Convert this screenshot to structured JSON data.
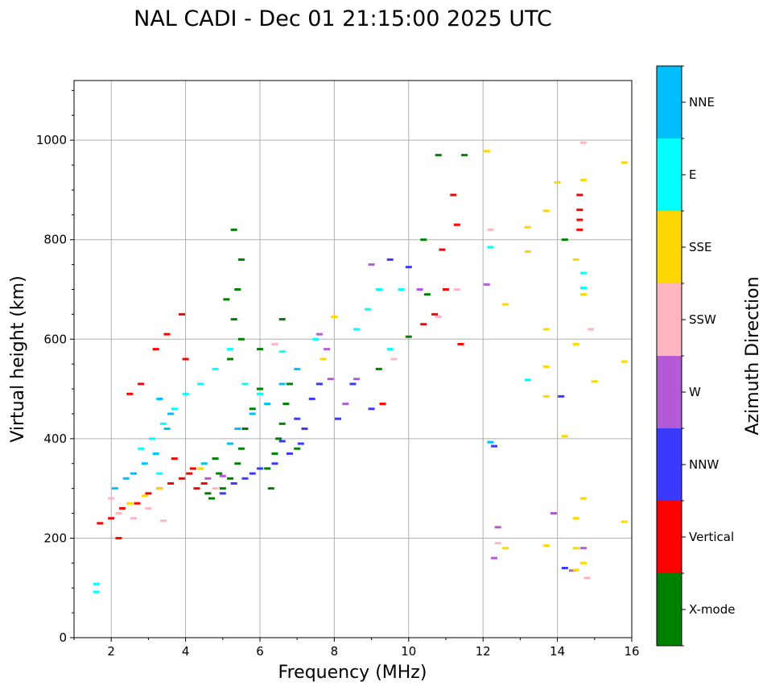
{
  "chart_data": {
    "type": "scatter",
    "title": "NAL CADI - Dec 01 21:15:00 2025 UTC",
    "xlabel": "Frequency (MHz)",
    "ylabel": "Virtual height (km)",
    "colorbar_label": "Azimuth Direction",
    "xlim": [
      1,
      16
    ],
    "ylim": [
      0,
      1120
    ],
    "xticks": [
      2,
      4,
      6,
      8,
      10,
      12,
      14,
      16
    ],
    "yticks": [
      0,
      200,
      400,
      600,
      800,
      1000
    ],
    "xtick_labels": [
      "2",
      "4",
      "6",
      "8",
      "10",
      "12",
      "14",
      "16"
    ],
    "ytick_labels": [
      "0",
      "200",
      "400",
      "600",
      "800",
      "1000"
    ],
    "grid": true,
    "categories": [
      {
        "name": "X-mode",
        "color": "#008000"
      },
      {
        "name": "Vertical",
        "color": "#ff0000"
      },
      {
        "name": "NNW",
        "color": "#3a3aff"
      },
      {
        "name": "W",
        "color": "#b45ad6"
      },
      {
        "name": "SSW",
        "color": "#ffb6c1"
      },
      {
        "name": "SSE",
        "color": "#ffd700"
      },
      {
        "name": "E",
        "color": "#00ffff"
      },
      {
        "name": "NNE",
        "color": "#00bfff"
      }
    ],
    "series": [
      {
        "name": "X-mode",
        "points": [
          [
            4.7,
            280
          ],
          [
            5.0,
            300
          ],
          [
            5.2,
            320
          ],
          [
            5.4,
            350
          ],
          [
            5.5,
            380
          ],
          [
            5.6,
            420
          ],
          [
            5.8,
            460
          ],
          [
            6.0,
            500
          ],
          [
            6.2,
            340
          ],
          [
            6.4,
            370
          ],
          [
            6.5,
            400
          ],
          [
            6.6,
            430
          ],
          [
            6.7,
            470
          ],
          [
            6.8,
            510
          ],
          [
            7.0,
            380
          ],
          [
            5.3,
            640
          ],
          [
            5.4,
            700
          ],
          [
            5.5,
            760
          ],
          [
            5.3,
            820
          ],
          [
            5.2,
            560
          ],
          [
            5.5,
            600
          ],
          [
            6.0,
            580
          ],
          [
            6.6,
            640
          ],
          [
            4.6,
            290
          ],
          [
            4.9,
            330
          ],
          [
            10.8,
            970
          ],
          [
            11.5,
            970
          ],
          [
            10.4,
            800
          ],
          [
            10.5,
            690
          ],
          [
            14.2,
            800
          ],
          [
            9.2,
            540
          ],
          [
            10.0,
            605
          ],
          [
            5.1,
            680
          ],
          [
            4.8,
            360
          ],
          [
            6.3,
            300
          ]
        ]
      },
      {
        "name": "Vertical",
        "points": [
          [
            1.7,
            230
          ],
          [
            2.0,
            240
          ],
          [
            2.3,
            260
          ],
          [
            2.7,
            270
          ],
          [
            3.0,
            290
          ],
          [
            3.3,
            300
          ],
          [
            3.6,
            310
          ],
          [
            3.9,
            320
          ],
          [
            4.1,
            330
          ],
          [
            4.3,
            300
          ],
          [
            3.2,
            580
          ],
          [
            3.5,
            610
          ],
          [
            3.9,
            650
          ],
          [
            2.5,
            490
          ],
          [
            2.8,
            510
          ],
          [
            4.0,
            560
          ],
          [
            3.7,
            360
          ],
          [
            4.2,
            340
          ],
          [
            2.2,
            200
          ],
          [
            10.9,
            780
          ],
          [
            11.3,
            830
          ],
          [
            11.0,
            700
          ],
          [
            10.7,
            650
          ],
          [
            11.4,
            590
          ],
          [
            14.6,
            820
          ],
          [
            14.6,
            840
          ],
          [
            14.6,
            860
          ],
          [
            14.6,
            890
          ],
          [
            9.3,
            470
          ],
          [
            10.4,
            630
          ],
          [
            11.2,
            890
          ],
          [
            4.5,
            310
          ]
        ]
      },
      {
        "name": "NNW",
        "points": [
          [
            5.0,
            290
          ],
          [
            5.3,
            310
          ],
          [
            5.6,
            320
          ],
          [
            6.0,
            340
          ],
          [
            6.4,
            350
          ],
          [
            6.8,
            370
          ],
          [
            7.1,
            390
          ],
          [
            7.2,
            420
          ],
          [
            7.4,
            480
          ],
          [
            7.6,
            510
          ],
          [
            8.1,
            440
          ],
          [
            8.5,
            510
          ],
          [
            9.0,
            460
          ],
          [
            9.5,
            760
          ],
          [
            10.0,
            745
          ],
          [
            12.3,
            385
          ],
          [
            14.1,
            485
          ],
          [
            14.2,
            140
          ],
          [
            6.6,
            395
          ],
          [
            7.0,
            440
          ],
          [
            5.8,
            330
          ]
        ]
      },
      {
        "name": "W",
        "points": [
          [
            4.6,
            320
          ],
          [
            5.0,
            325
          ],
          [
            7.6,
            610
          ],
          [
            7.9,
            520
          ],
          [
            8.3,
            470
          ],
          [
            8.6,
            520
          ],
          [
            9.0,
            750
          ],
          [
            10.3,
            700
          ],
          [
            12.1,
            710
          ],
          [
            12.4,
            222
          ],
          [
            12.3,
            160
          ],
          [
            14.4,
            135
          ],
          [
            13.9,
            250
          ],
          [
            14.7,
            180
          ],
          [
            7.8,
            580
          ]
        ]
      },
      {
        "name": "SSW",
        "points": [
          [
            2.2,
            250
          ],
          [
            2.6,
            240
          ],
          [
            3.0,
            260
          ],
          [
            3.4,
            235
          ],
          [
            2.0,
            280
          ],
          [
            6.4,
            590
          ],
          [
            9.6,
            560
          ],
          [
            10.8,
            645
          ],
          [
            11.3,
            700
          ],
          [
            12.2,
            820
          ],
          [
            12.4,
            190
          ],
          [
            14.9,
            620
          ],
          [
            14.8,
            120
          ],
          [
            14.7,
            995
          ],
          [
            4.8,
            300
          ]
        ]
      },
      {
        "name": "SSE",
        "points": [
          [
            2.5,
            270
          ],
          [
            2.9,
            285
          ],
          [
            3.3,
            300
          ],
          [
            4.4,
            340
          ],
          [
            8.0,
            645
          ],
          [
            7.7,
            560
          ],
          [
            12.1,
            978
          ],
          [
            12.6,
            670
          ],
          [
            13.2,
            825
          ],
          [
            13.2,
            776
          ],
          [
            13.7,
            858
          ],
          [
            13.7,
            620
          ],
          [
            13.7,
            545
          ],
          [
            13.7,
            485
          ],
          [
            13.7,
            185
          ],
          [
            14.0,
            915
          ],
          [
            14.5,
            760
          ],
          [
            14.5,
            590
          ],
          [
            14.5,
            240
          ],
          [
            14.5,
            180
          ],
          [
            14.5,
            136
          ],
          [
            14.7,
            280
          ],
          [
            14.7,
            150
          ],
          [
            14.7,
            920
          ],
          [
            14.7,
            690
          ],
          [
            15.0,
            515
          ],
          [
            15.8,
            955
          ],
          [
            15.8,
            555
          ],
          [
            15.8,
            233
          ],
          [
            12.6,
            180
          ],
          [
            14.2,
            405
          ]
        ]
      },
      {
        "name": "E",
        "points": [
          [
            2.8,
            380
          ],
          [
            3.1,
            400
          ],
          [
            3.4,
            430
          ],
          [
            3.7,
            460
          ],
          [
            4.0,
            490
          ],
          [
            4.4,
            510
          ],
          [
            4.8,
            540
          ],
          [
            5.2,
            580
          ],
          [
            5.6,
            510
          ],
          [
            6.0,
            490
          ],
          [
            8.6,
            620
          ],
          [
            8.9,
            660
          ],
          [
            9.2,
            700
          ],
          [
            9.5,
            580
          ],
          [
            9.8,
            700
          ],
          [
            12.2,
            785
          ],
          [
            14.7,
            733
          ],
          [
            14.7,
            703
          ],
          [
            13.2,
            518
          ],
          [
            7.5,
            600
          ],
          [
            1.6,
            108
          ],
          [
            1.6,
            92
          ],
          [
            3.3,
            330
          ],
          [
            6.6,
            575
          ]
        ]
      },
      {
        "name": "NNE",
        "points": [
          [
            2.4,
            320
          ],
          [
            2.6,
            330
          ],
          [
            2.9,
            350
          ],
          [
            3.2,
            370
          ],
          [
            3.5,
            420
          ],
          [
            3.6,
            450
          ],
          [
            3.3,
            480
          ],
          [
            5.2,
            390
          ],
          [
            5.4,
            420
          ],
          [
            5.8,
            450
          ],
          [
            6.2,
            470
          ],
          [
            6.6,
            510
          ],
          [
            7.0,
            540
          ],
          [
            2.1,
            300
          ],
          [
            12.2,
            393
          ],
          [
            4.5,
            350
          ]
        ]
      }
    ]
  }
}
